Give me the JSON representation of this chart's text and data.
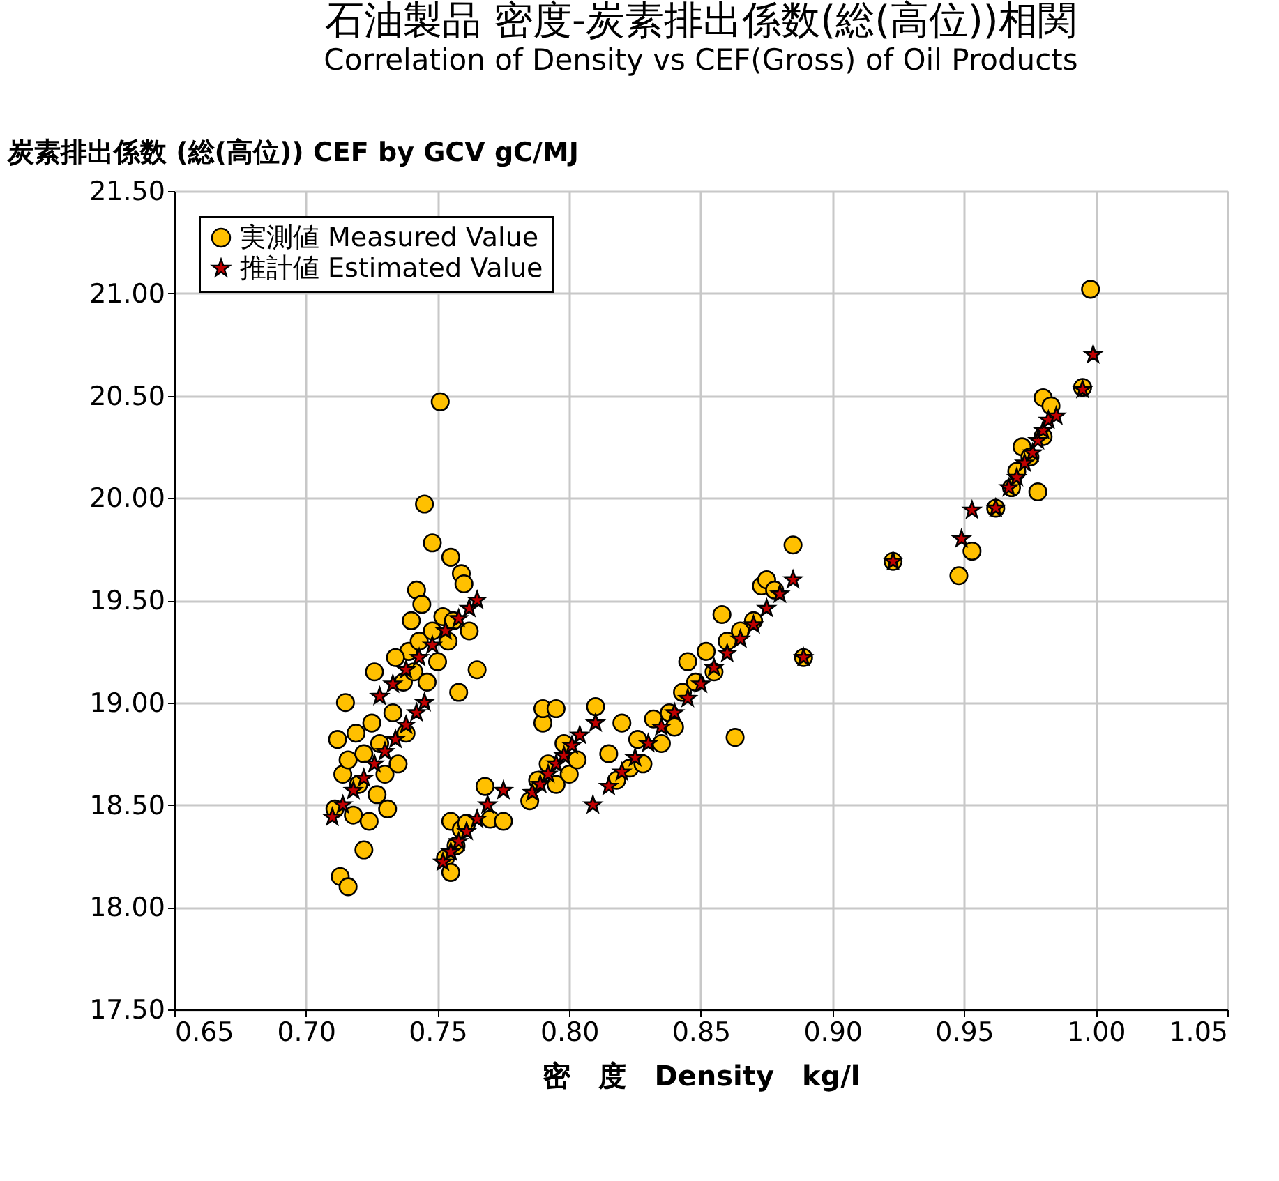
{
  "chart_data": {
    "type": "scatter",
    "title": "石油製品 密度-炭素排出係数(総(高位))相関",
    "subtitle": "Correlation of Density vs CEF(Gross) of Oil Products",
    "xlabel": "密　度　Density　kg/l",
    "ylabel": "炭素排出係数 (総(高位)) CEF by GCV gC/MJ",
    "xlim": [
      0.65,
      1.05
    ],
    "ylim": [
      17.5,
      21.5
    ],
    "xticks": [
      0.65,
      {
        "value": 0.7,
        "label": "0.70"
      },
      0.75,
      {
        "value": 0.8,
        "label": "0.80"
      },
      0.85,
      {
        "value": 0.9,
        "label": "0.90"
      },
      0.95,
      {
        "value": 1.0,
        "label": "1.00"
      },
      1.05
    ],
    "yticks": [
      {
        "value": 17.5,
        "label": "17.50"
      },
      {
        "value": 18,
        "label": "18.00"
      },
      {
        "value": 18.5,
        "label": "18.50"
      },
      {
        "value": 19,
        "label": "19.00"
      },
      {
        "value": 19.5,
        "label": "19.50"
      },
      {
        "value": 20,
        "label": "20.00"
      },
      {
        "value": 20.5,
        "label": "20.50"
      },
      {
        "value": 21,
        "label": "21.00"
      },
      {
        "value": 21.5,
        "label": "21.50"
      }
    ],
    "grid": true,
    "legend": "top left",
    "series": [
      {
        "name": "実測値 Measured Value",
        "color": "#ffc000",
        "marker": "circle",
        "x": [
          0.711,
          0.712,
          0.713,
          0.716,
          0.715,
          0.714,
          0.716,
          0.718,
          0.719,
          0.72,
          0.722,
          0.722,
          0.724,
          0.725,
          0.727,
          0.728,
          0.73,
          0.731,
          0.733,
          0.735,
          0.737,
          0.738,
          0.739,
          0.74,
          0.741,
          0.742,
          0.743,
          0.745,
          0.744,
          0.746,
          0.748,
          0.748,
          0.75,
          0.751,
          0.752,
          0.754,
          0.755,
          0.756,
          0.758,
          0.759,
          0.76,
          0.762,
          0.765,
          0.726,
          0.734,
          0.753,
          0.755,
          0.755,
          0.757,
          0.759,
          0.761,
          0.768,
          0.77,
          0.775,
          0.785,
          0.788,
          0.79,
          0.79,
          0.792,
          0.795,
          0.795,
          0.798,
          0.8,
          0.803,
          0.81,
          0.815,
          0.818,
          0.82,
          0.823,
          0.826,
          0.828,
          0.832,
          0.835,
          0.838,
          0.84,
          0.843,
          0.845,
          0.848,
          0.852,
          0.855,
          0.858,
          0.86,
          0.863,
          0.865,
          0.87,
          0.873,
          0.875,
          0.878,
          0.885,
          0.889,
          0.923,
          0.948,
          0.953,
          0.962,
          0.968,
          0.97,
          0.972,
          0.975,
          0.978,
          0.98,
          0.98,
          0.983,
          0.995,
          0.998
        ],
        "values": [
          18.48,
          18.82,
          18.15,
          18.1,
          19.0,
          18.65,
          18.72,
          18.45,
          18.85,
          18.6,
          18.28,
          18.75,
          18.42,
          18.9,
          18.55,
          18.8,
          18.65,
          18.48,
          18.95,
          18.7,
          19.1,
          18.85,
          19.25,
          19.4,
          19.15,
          19.55,
          19.3,
          19.97,
          19.48,
          19.1,
          19.78,
          19.35,
          19.2,
          20.47,
          19.42,
          19.3,
          19.71,
          19.4,
          19.05,
          19.63,
          19.58,
          19.35,
          19.16,
          19.15,
          19.22,
          18.24,
          18.17,
          18.42,
          18.3,
          18.38,
          18.41,
          18.59,
          18.43,
          18.42,
          18.52,
          18.62,
          18.9,
          18.97,
          18.7,
          18.97,
          18.6,
          18.8,
          18.65,
          18.72,
          18.98,
          18.75,
          18.62,
          18.9,
          18.68,
          18.82,
          18.7,
          18.92,
          18.8,
          18.95,
          18.88,
          19.05,
          19.2,
          19.1,
          19.25,
          19.15,
          19.43,
          19.3,
          18.83,
          19.35,
          19.4,
          19.57,
          19.6,
          19.55,
          19.77,
          19.22,
          19.69,
          19.62,
          19.74,
          19.95,
          20.05,
          20.13,
          20.25,
          20.2,
          20.03,
          20.3,
          20.49,
          20.45,
          20.54,
          21.02
        ]
      },
      {
        "name": "推計値 Estimated Value",
        "color": "#c00000",
        "marker": "star",
        "x": [
          0.71,
          0.714,
          0.718,
          0.722,
          0.726,
          0.73,
          0.734,
          0.738,
          0.742,
          0.745,
          0.728,
          0.733,
          0.738,
          0.743,
          0.748,
          0.753,
          0.758,
          0.762,
          0.765,
          0.752,
          0.755,
          0.758,
          0.761,
          0.765,
          0.769,
          0.775,
          0.786,
          0.789,
          0.792,
          0.795,
          0.798,
          0.801,
          0.804,
          0.81,
          0.809,
          0.815,
          0.82,
          0.825,
          0.83,
          0.835,
          0.84,
          0.845,
          0.85,
          0.855,
          0.86,
          0.865,
          0.87,
          0.875,
          0.88,
          0.885,
          0.889,
          0.923,
          0.949,
          0.953,
          0.962,
          0.967,
          0.97,
          0.973,
          0.976,
          0.978,
          0.98,
          0.982,
          0.985,
          0.995,
          0.999
        ],
        "values": [
          18.44,
          18.5,
          18.57,
          18.63,
          18.7,
          18.76,
          18.82,
          18.89,
          18.95,
          19.0,
          19.03,
          19.09,
          19.16,
          19.22,
          19.28,
          19.35,
          19.41,
          19.46,
          19.5,
          18.22,
          18.27,
          18.32,
          18.37,
          18.43,
          18.5,
          18.57,
          18.56,
          18.6,
          18.65,
          18.7,
          18.74,
          18.79,
          18.84,
          18.9,
          18.5,
          18.59,
          18.66,
          18.73,
          18.8,
          18.88,
          18.95,
          19.02,
          19.09,
          19.17,
          19.24,
          19.31,
          19.38,
          19.46,
          19.53,
          19.6,
          19.22,
          19.69,
          19.8,
          19.94,
          19.95,
          20.05,
          20.1,
          20.17,
          20.22,
          20.28,
          20.33,
          20.38,
          20.4,
          20.53,
          20.7
        ]
      }
    ]
  }
}
